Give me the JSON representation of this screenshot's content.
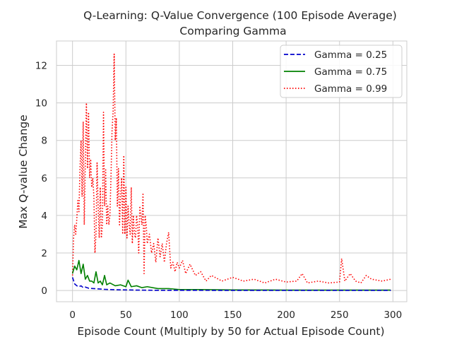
{
  "chart_data": {
    "type": "line",
    "title_line1": "Q-Learning: Q-Value Convergence (100 Episode Average)",
    "title_line2": "Comparing Gamma",
    "xlabel": "Episode Count (Multiply by 50 for Actual Episode Count)",
    "ylabel": "Max Q-value Change",
    "xlim": [
      -15,
      313
    ],
    "ylim": [
      -0.6,
      13.3
    ],
    "xticks": [
      0,
      50,
      100,
      150,
      200,
      250,
      300
    ],
    "yticks": [
      0,
      2,
      4,
      6,
      8,
      10,
      12
    ],
    "xtick_labels": [
      "0",
      "50",
      "100",
      "150",
      "200",
      "250",
      "300"
    ],
    "ytick_labels": [
      "0",
      "2",
      "4",
      "6",
      "8",
      "10",
      "12"
    ],
    "grid": true,
    "legend_position": "upper-right",
    "series": [
      {
        "name": "Gamma = 0.25",
        "color": "#0000cc",
        "style": "dashed",
        "x": [
          0,
          2,
          4,
          6,
          8,
          10,
          12,
          15,
          20,
          25,
          30,
          40,
          50,
          60,
          80,
          100,
          150,
          200,
          250,
          298
        ],
        "y": [
          0.7,
          0.35,
          0.25,
          0.2,
          0.25,
          0.15,
          0.18,
          0.12,
          0.1,
          0.08,
          0.06,
          0.04,
          0.03,
          0.02,
          0.01,
          0.01,
          0.005,
          0.005,
          0.005,
          0.005
        ]
      },
      {
        "name": "Gamma = 0.75",
        "color": "#008000",
        "style": "solid",
        "x": [
          0,
          2,
          4,
          6,
          8,
          10,
          12,
          14,
          16,
          18,
          20,
          22,
          24,
          26,
          28,
          30,
          32,
          35,
          40,
          45,
          50,
          52,
          55,
          60,
          65,
          70,
          80,
          90,
          100,
          120,
          150,
          200,
          250,
          298
        ],
        "y": [
          0.9,
          1.3,
          1.1,
          1.6,
          0.9,
          1.4,
          0.6,
          0.8,
          0.5,
          0.5,
          0.4,
          1.0,
          0.4,
          0.5,
          0.3,
          0.8,
          0.3,
          0.4,
          0.25,
          0.3,
          0.2,
          0.55,
          0.2,
          0.25,
          0.15,
          0.2,
          0.1,
          0.1,
          0.05,
          0.05,
          0.03,
          0.02,
          0.02,
          0.02
        ]
      },
      {
        "name": "Gamma = 0.99",
        "color": "#ff0000",
        "style": "dotted",
        "x": [
          0,
          1,
          2,
          3,
          4,
          5,
          6,
          7,
          8,
          9,
          10,
          11,
          12,
          13,
          14,
          15,
          16,
          17,
          18,
          19,
          20,
          21,
          22,
          23,
          24,
          25,
          26,
          27,
          28,
          29,
          30,
          31,
          32,
          33,
          34,
          35,
          36,
          37,
          38,
          39,
          40,
          41,
          42,
          43,
          44,
          45,
          46,
          47,
          48,
          49,
          50,
          51,
          52,
          53,
          54,
          55,
          56,
          57,
          58,
          59,
          60,
          61,
          62,
          63,
          64,
          65,
          66,
          67,
          68,
          69,
          70,
          72,
          74,
          76,
          78,
          80,
          82,
          84,
          86,
          88,
          90,
          92,
          94,
          96,
          98,
          100,
          103,
          106,
          110,
          115,
          120,
          125,
          130,
          140,
          150,
          160,
          170,
          180,
          190,
          200,
          210,
          215,
          220,
          230,
          240,
          250,
          252,
          255,
          260,
          265,
          270,
          275,
          280,
          290,
          298
        ],
        "y": [
          0.8,
          2.8,
          3.5,
          3.0,
          3.8,
          4.8,
          4.2,
          6.5,
          8.0,
          5.0,
          9.0,
          3.5,
          7.0,
          10.0,
          6.5,
          9.5,
          6.0,
          7.0,
          5.5,
          6.0,
          5.0,
          2.0,
          3.0,
          6.8,
          4.5,
          2.8,
          5.5,
          2.8,
          3.5,
          9.5,
          4.5,
          6.5,
          3.5,
          4.5,
          3.5,
          4.0,
          6.0,
          8.5,
          9.5,
          12.6,
          8.0,
          9.2,
          4.5,
          6.5,
          3.5,
          5.0,
          6.0,
          3.0,
          7.2,
          3.0,
          5.5,
          2.8,
          4.5,
          3.5,
          3.0,
          5.5,
          2.5,
          4.0,
          3.0,
          2.8,
          4.0,
          3.5,
          2.0,
          4.5,
          4.0,
          3.5,
          5.2,
          0.9,
          4.0,
          3.5,
          2.5,
          3.0,
          2.0,
          2.5,
          1.5,
          2.8,
          1.8,
          2.5,
          1.5,
          2.5,
          3.1,
          1.2,
          1.5,
          1.0,
          1.5,
          1.2,
          1.6,
          0.9,
          1.4,
          0.8,
          1.0,
          0.5,
          0.8,
          0.5,
          0.7,
          0.5,
          0.6,
          0.4,
          0.6,
          0.45,
          0.5,
          0.9,
          0.4,
          0.5,
          0.4,
          0.45,
          1.7,
          0.5,
          0.9,
          0.5,
          0.4,
          0.8,
          0.6,
          0.5,
          0.6
        ]
      }
    ]
  }
}
